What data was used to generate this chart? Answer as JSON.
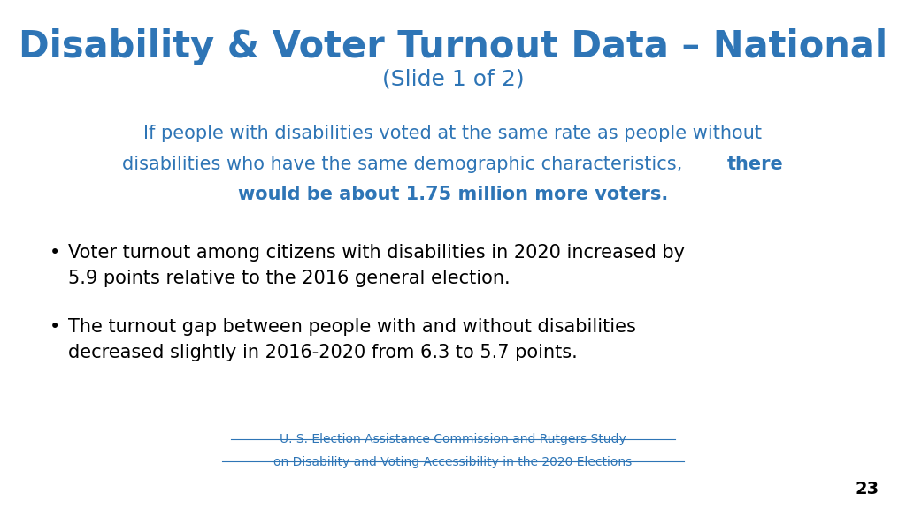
{
  "title_line1": "Disability & Voter Turnout Data – National",
  "title_line2": "(Slide 1 of 2)",
  "title_color": "#2E75B6",
  "subtitle_color": "#2E75B6",
  "subtitle_line1": "If people with disabilities voted at the same rate as people without",
  "subtitle_line2_normal": "disabilities who have the same demographic characteristics, ",
  "subtitle_line2_bold": "there",
  "subtitle_line3": "would be about 1.75 million more voters.",
  "bullet1_line1": "Voter turnout among citizens with disabilities in 2020 increased by",
  "bullet1_line2": "5.9 points relative to the 2016 general election.",
  "bullet2_line1": "The turnout gap between people with and without disabilities",
  "bullet2_line2": "decreased slightly in 2016-2020 from 6.3 to 5.7 points.",
  "footer_line1": "U. S. Election Assistance Commission and Rutgers Study",
  "footer_line2": "on Disability and Voting Accessibility in the 2020 Elections",
  "footer_color": "#2E75B6",
  "page_number": "23",
  "bullet_color": "#000000",
  "background_color": "#FFFFFF"
}
